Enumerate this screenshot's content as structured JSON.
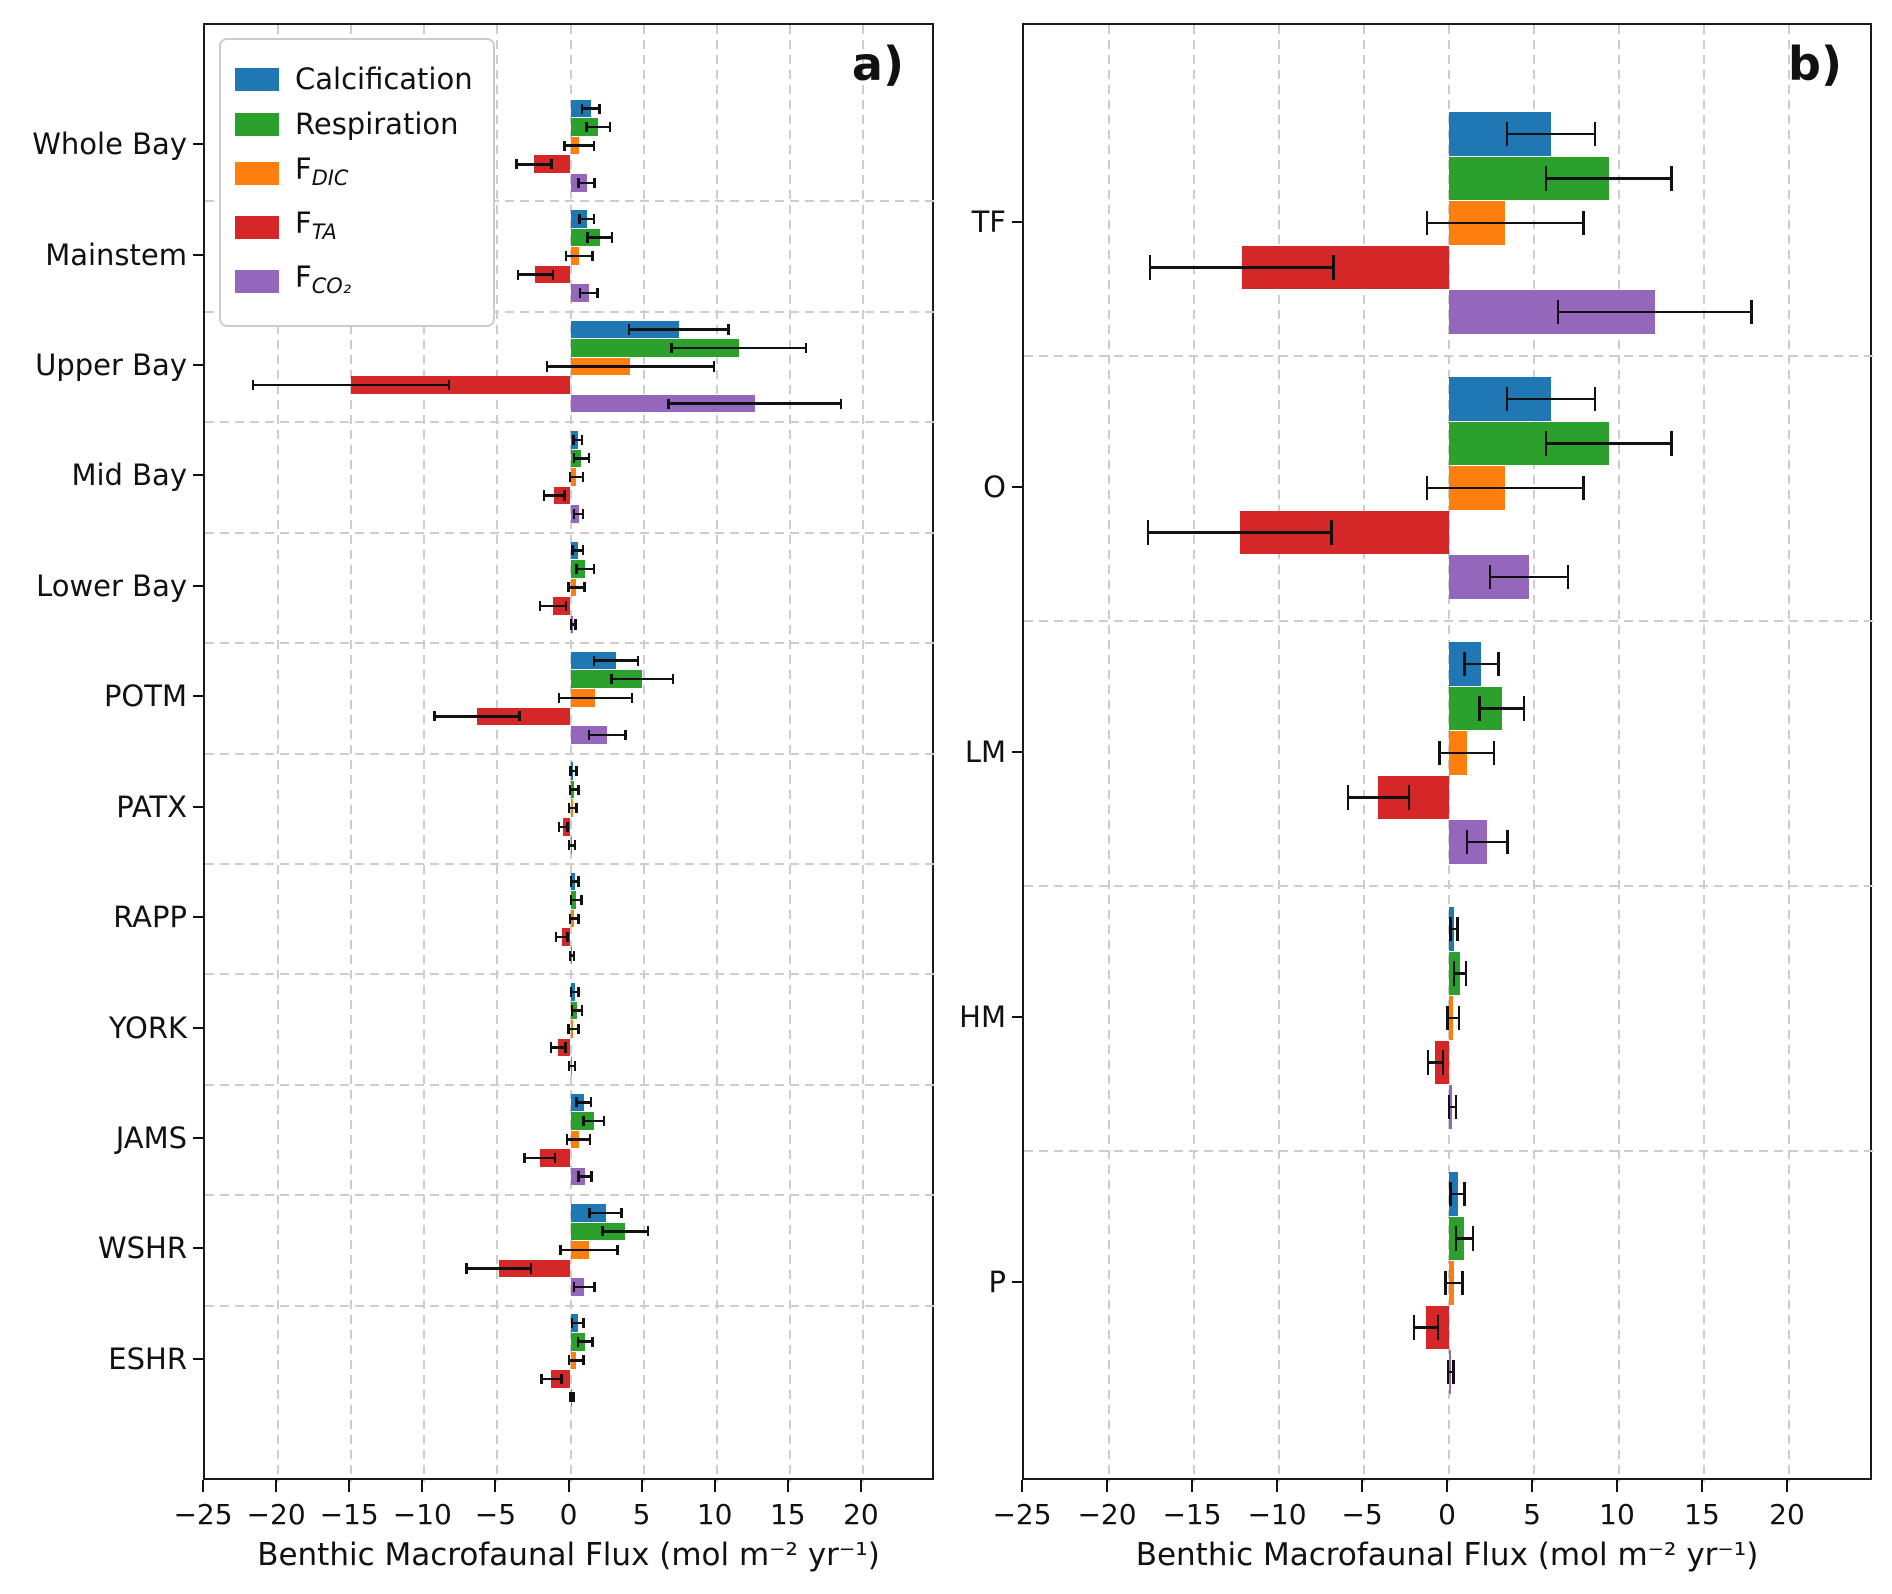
{
  "chart_data": {
    "type": "bar",
    "orientation": "horizontal",
    "title": "",
    "xlabel": "Benthic Macrofaunal Flux (mol m⁻² yr⁻¹)",
    "xlim": [
      -25,
      25
    ],
    "xticks": [
      -25,
      -20,
      -15,
      -10,
      -5,
      0,
      5,
      10,
      15,
      20
    ],
    "xtick_labels": [
      "−25",
      "−20",
      "−15",
      "−10",
      "−5",
      "0",
      "5",
      "10",
      "15",
      "20"
    ],
    "grid": "dashed, vertical at ticks and horizontal between category groups",
    "legend_position": "upper left of panel a",
    "series": [
      {
        "name": "Calcification",
        "legend_text": "Calcification",
        "legend_sub": "",
        "color": "#1f77b4"
      },
      {
        "name": "Respiration",
        "legend_text": "Respiration",
        "legend_sub": "",
        "color": "#2ca02c"
      },
      {
        "name": "F_DIC",
        "legend_text": "F",
        "legend_sub": "DIC",
        "color": "#ff7f0e"
      },
      {
        "name": "F_TA",
        "legend_text": "F",
        "legend_sub": "TA",
        "color": "#d62728"
      },
      {
        "name": "F_CO2",
        "legend_text": "F",
        "legend_sub": "CO₂",
        "color": "#9467bd"
      }
    ],
    "panels": [
      {
        "label": "a)",
        "categories": [
          "Whole Bay",
          "Mainstem",
          "Upper Bay",
          "Mid Bay",
          "Lower Bay",
          "POTM",
          "PATX",
          "RAPP",
          "YORK",
          "JAMS",
          "WSHR",
          "ESHR"
        ],
        "groups": [
          {
            "category": "Whole Bay",
            "values": [
              1.4,
              1.9,
              0.6,
              -2.5,
              1.1
            ],
            "errors": [
              0.6,
              0.8,
              1.0,
              1.2,
              0.55
            ]
          },
          {
            "category": "Mainstem",
            "values": [
              1.1,
              2.0,
              0.6,
              -2.4,
              1.25
            ],
            "errors": [
              0.5,
              0.85,
              0.9,
              1.2,
              0.6
            ]
          },
          {
            "category": "Upper Bay",
            "values": [
              7.4,
              11.5,
              4.1,
              -15.0,
              12.6
            ],
            "errors": [
              3.4,
              4.6,
              5.7,
              6.7,
              5.9
            ]
          },
          {
            "category": "Mid Bay",
            "values": [
              0.5,
              0.75,
              0.4,
              -1.1,
              0.55
            ],
            "errors": [
              0.3,
              0.5,
              0.45,
              0.7,
              0.3
            ]
          },
          {
            "category": "Lower Bay",
            "values": [
              0.5,
              1.0,
              0.4,
              -1.2,
              0.2
            ],
            "errors": [
              0.35,
              0.6,
              0.55,
              0.9,
              0.15
            ]
          },
          {
            "category": "POTM",
            "values": [
              3.1,
              4.9,
              1.7,
              -6.4,
              2.5
            ],
            "errors": [
              1.5,
              2.1,
              2.5,
              2.9,
              1.25
            ]
          },
          {
            "category": "PATX",
            "values": [
              0.2,
              0.25,
              0.15,
              -0.5,
              0.1
            ],
            "errors": [
              0.2,
              0.3,
              0.25,
              0.3,
              0.2
            ]
          },
          {
            "category": "RAPP",
            "values": [
              0.3,
              0.4,
              0.25,
              -0.6,
              0.1
            ],
            "errors": [
              0.25,
              0.35,
              0.3,
              0.4,
              0.15
            ]
          },
          {
            "category": "YORK",
            "values": [
              0.3,
              0.45,
              0.2,
              -0.85,
              0.1
            ],
            "errors": [
              0.25,
              0.35,
              0.35,
              0.5,
              0.2
            ]
          },
          {
            "category": "JAMS",
            "values": [
              0.9,
              1.6,
              0.55,
              -2.1,
              1.0
            ],
            "errors": [
              0.5,
              0.7,
              0.8,
              1.05,
              0.45
            ]
          },
          {
            "category": "WSHR",
            "values": [
              2.4,
              3.75,
              1.25,
              -4.9,
              0.95
            ],
            "errors": [
              1.1,
              1.55,
              1.95,
              2.2,
              0.7
            ]
          },
          {
            "category": "ESHR",
            "values": [
              0.5,
              1.0,
              0.4,
              -1.3,
              0.1
            ],
            "errors": [
              0.4,
              0.5,
              0.5,
              0.7,
              0.1
            ]
          }
        ]
      },
      {
        "label": "b)",
        "categories": [
          "TF",
          "O",
          "LM",
          "HM",
          "P"
        ],
        "groups": [
          {
            "category": "TF",
            "values": [
              6.0,
              9.4,
              3.3,
              -12.2,
              12.1
            ],
            "errors": [
              2.6,
              3.7,
              4.6,
              5.4,
              5.7
            ]
          },
          {
            "category": "O",
            "values": [
              6.0,
              9.4,
              3.3,
              -12.3,
              4.7
            ],
            "errors": [
              2.6,
              3.7,
              4.6,
              5.4,
              2.3
            ]
          },
          {
            "category": "LM",
            "values": [
              1.9,
              3.1,
              1.05,
              -4.15,
              2.25
            ],
            "errors": [
              1.0,
              1.3,
              1.6,
              1.8,
              1.2
            ]
          },
          {
            "category": "HM",
            "values": [
              0.3,
              0.65,
              0.25,
              -0.8,
              0.2
            ],
            "errors": [
              0.2,
              0.35,
              0.35,
              0.45,
              0.2
            ]
          },
          {
            "category": "P",
            "values": [
              0.5,
              0.9,
              0.3,
              -1.35,
              0.1
            ],
            "errors": [
              0.4,
              0.5,
              0.5,
              0.7,
              0.15
            ]
          }
        ]
      }
    ]
  }
}
